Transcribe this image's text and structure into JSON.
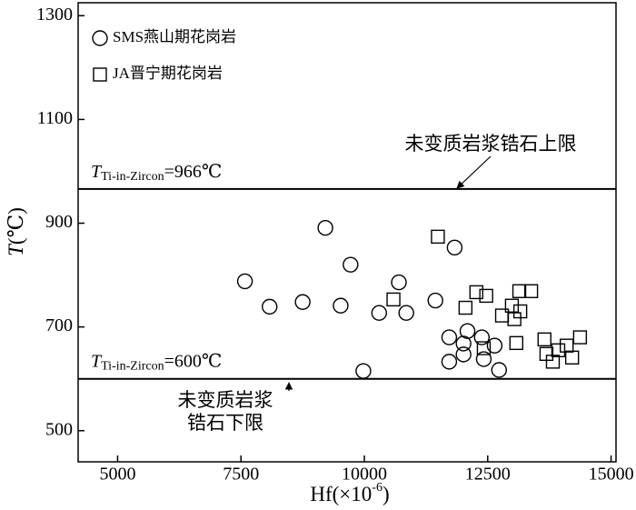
{
  "chart_data": {
    "type": "scatter",
    "x_label": {
      "text": "Hf(×10",
      "superscript": "-6",
      "end": ")"
    },
    "y_label": {
      "symbol": "T",
      "text": "(℃)"
    },
    "xlim": [
      4200,
      15100
    ],
    "ylim": [
      440,
      1325
    ],
    "xticks": [
      5000,
      7500,
      10000,
      12500,
      15000
    ],
    "yticks": [
      500,
      700,
      900,
      1100,
      1300
    ],
    "legend": "top-left",
    "series": [
      {
        "name": "SMS燕山期花岗岩",
        "marker": "circle",
        "color": "#000000",
        "x": [
          7580,
          8080,
          8750,
          9210,
          9520,
          9720,
          9980,
          10300,
          10700,
          10850,
          11440,
          11830,
          11720,
          11720,
          12010,
          12010,
          12090,
          12380,
          12420,
          12640,
          12730
        ],
        "y": [
          788,
          739,
          748,
          891,
          741,
          820,
          615,
          727,
          786,
          727,
          751,
          853,
          680,
          633,
          668,
          647,
          692,
          680,
          638,
          664,
          617
        ]
      },
      {
        "name": "JA晋宁期花岗岩",
        "marker": "square",
        "color": "#000000",
        "x": [
          11490,
          10590,
          12050,
          12270,
          12470,
          12790,
          12990,
          13040,
          13160,
          13140,
          13380,
          13080,
          12420,
          13650,
          13690,
          13820,
          13930,
          14100,
          14210,
          14370
        ],
        "y": [
          874,
          753,
          737,
          767,
          760,
          722,
          741,
          715,
          730,
          769,
          769,
          669,
          659,
          676,
          648,
          633,
          655,
          664,
          641,
          680
        ]
      }
    ],
    "reference_lines": [
      {
        "value": 966,
        "label": {
          "symbol": "T",
          "subscript": "Ti-in-Zircon",
          "text": "=966℃"
        }
      },
      {
        "value": 600,
        "label": {
          "symbol": "T",
          "subscript": "Ti-in-Zircon",
          "text": "=600℃"
        }
      }
    ],
    "annotations": [
      {
        "lines": [
          "未变质岩浆锆石上限"
        ]
      },
      {
        "lines": [
          "未变质岩浆",
          "锆石下限"
        ]
      }
    ]
  }
}
